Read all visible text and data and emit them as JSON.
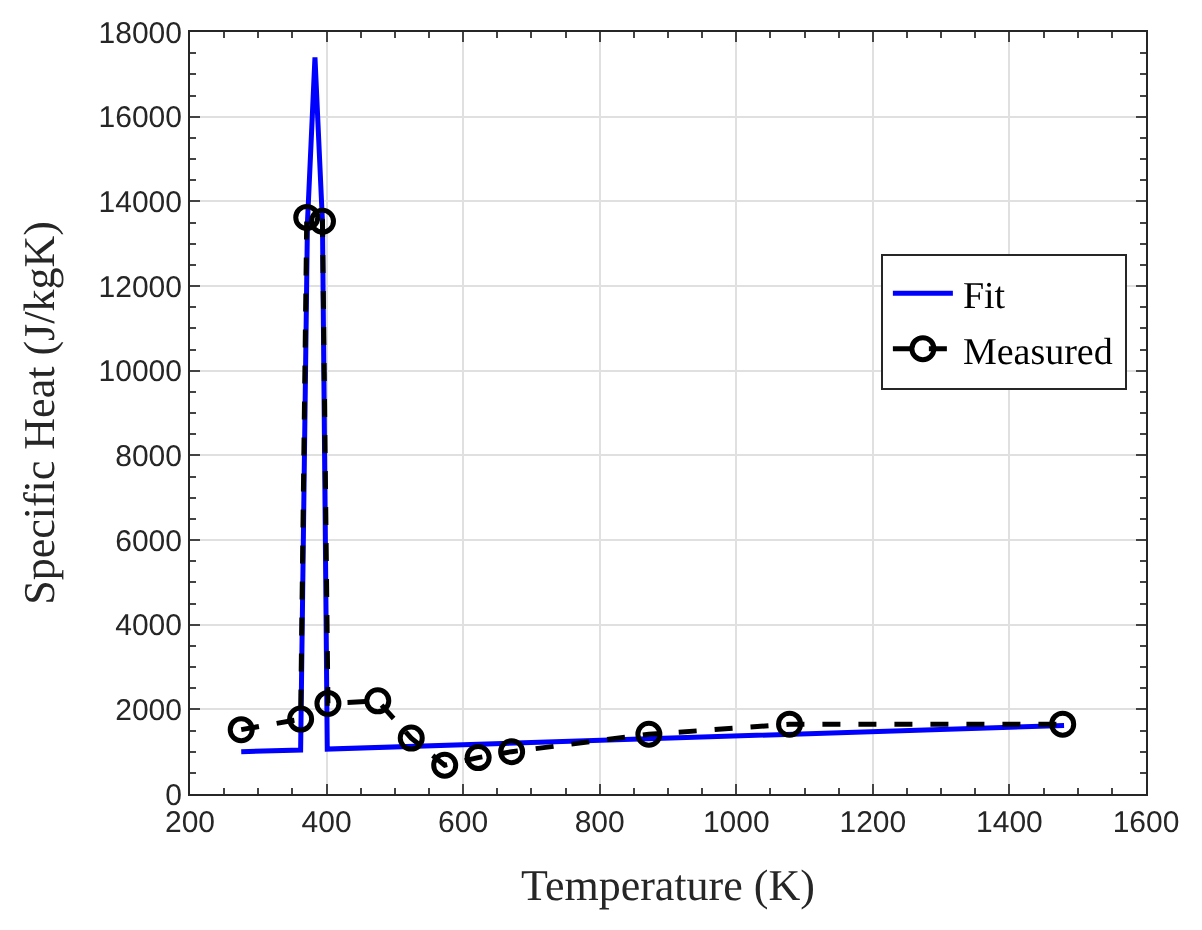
{
  "chart_data": {
    "type": "line",
    "xlabel": "Temperature (K)",
    "ylabel": "Specific Heat (J/kgK)",
    "xlim": [
      200,
      1600
    ],
    "xticks": [
      200,
      400,
      600,
      800,
      1000,
      1200,
      1400,
      1600
    ],
    "ylim": [
      0,
      18000
    ],
    "yticks": [
      0,
      2000,
      4000,
      6000,
      8000,
      10000,
      12000,
      14000,
      16000,
      18000
    ],
    "grid": true,
    "legend": "right",
    "series": [
      {
        "name": "Fit",
        "color": "#0000ff",
        "line_style": "solid",
        "marker": "none",
        "x": [
          275,
          362,
          372,
          383,
          394,
          401,
          1480
        ],
        "values": [
          1000,
          1040,
          13500,
          17400,
          13500,
          1060,
          1620
        ]
      },
      {
        "name": "Measured",
        "color": "#000000",
        "line_style": "dashed",
        "marker": "circle",
        "x": [
          275,
          362,
          371,
          394,
          402,
          475,
          524,
          573,
          622,
          671,
          872,
          1078,
          1478
        ],
        "values": [
          1520,
          1770,
          13620,
          13530,
          2140,
          2200,
          1320,
          680,
          860,
          1000,
          1410,
          1650,
          1650
        ]
      }
    ]
  }
}
